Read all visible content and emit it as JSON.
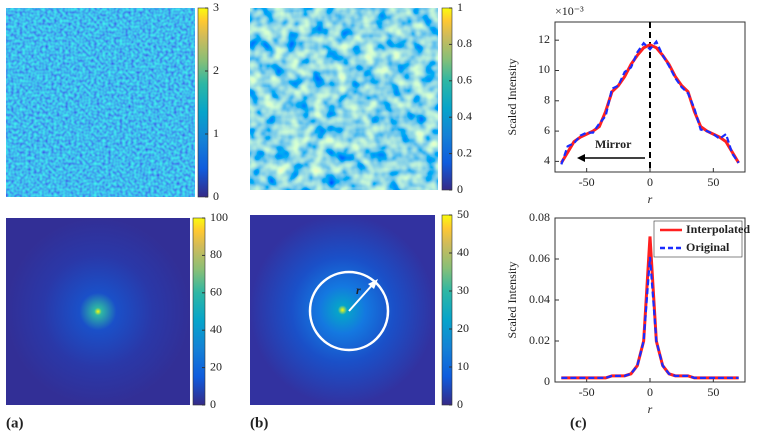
{
  "panel_labels": [
    "(a)",
    "(b)",
    "(c)"
  ],
  "chart_data": [
    {
      "type": "heatmap",
      "zlim": [
        0,
        3
      ],
      "zticks": [
        0,
        1,
        2,
        3
      ]
    },
    {
      "type": "heatmap",
      "zlim": [
        0,
        1
      ],
      "zticks": [
        0,
        0.2,
        0.4,
        0.6,
        0.8,
        1
      ]
    },
    {
      "type": "heatmap",
      "zlim": [
        0,
        100
      ],
      "zticks": [
        0,
        20,
        40,
        60,
        80,
        100
      ]
    },
    {
      "type": "heatmap",
      "zlim": [
        0,
        50
      ],
      "zticks": [
        0,
        10,
        20,
        30,
        40,
        50
      ],
      "annotation": "r"
    },
    {
      "type": "line",
      "xlabel": "r",
      "ylabel": "Scaled Intensity",
      "y_multiplier": "×10⁻³",
      "annotation": "Mirror",
      "vline": 0,
      "xlim": [
        -75,
        75
      ],
      "xticks": [
        -50,
        0,
        50
      ],
      "ylim": [
        3.3,
        13.2
      ],
      "yticks": [
        4,
        6,
        8,
        10,
        12
      ],
      "x": [
        -70,
        -65,
        -60,
        -55,
        -50,
        -45,
        -40,
        -35,
        -30,
        -25,
        -20,
        -15,
        -10,
        -5,
        0,
        5,
        10,
        15,
        20,
        25,
        30,
        35,
        40,
        45,
        50,
        55,
        60,
        65,
        70
      ],
      "series": [
        {
          "color": "#ff2020",
          "style": "solid",
          "values": [
            3.9,
            4.6,
            5.3,
            5.6,
            5.8,
            6.0,
            6.3,
            7.3,
            8.6,
            9.0,
            9.6,
            10.4,
            11.0,
            11.5,
            11.7,
            11.5,
            11.0,
            10.4,
            9.6,
            9.0,
            8.6,
            7.3,
            6.3,
            6.0,
            5.8,
            5.6,
            5.3,
            4.6,
            3.9
          ]
        },
        {
          "color": "#1a2cff",
          "style": "dashed",
          "values": [
            3.8,
            5.0,
            5.2,
            5.7,
            5.9,
            5.9,
            6.5,
            7.0,
            8.8,
            9.0,
            9.9,
            10.2,
            11.2,
            11.8,
            11.4,
            11.9,
            11.0,
            10.3,
            9.5,
            8.9,
            8.5,
            7.5,
            6.1,
            6.0,
            5.8,
            5.5,
            5.8,
            4.5,
            3.9
          ]
        }
      ]
    },
    {
      "type": "line",
      "xlabel": "r",
      "ylabel": "Scaled Intensity",
      "legend": "upper right",
      "xlim": [
        -75,
        75
      ],
      "xticks": [
        -50,
        0,
        50
      ],
      "ylim": [
        0,
        0.08
      ],
      "yticks": [
        0,
        0.02,
        0.04,
        0.06,
        0.08
      ],
      "x": [
        -70,
        -65,
        -60,
        -55,
        -50,
        -45,
        -40,
        -35,
        -30,
        -25,
        -20,
        -15,
        -10,
        -5,
        0,
        5,
        10,
        15,
        20,
        25,
        30,
        35,
        40,
        45,
        50,
        55,
        60,
        65,
        70
      ],
      "series": [
        {
          "name": "Interpolated",
          "color": "#ff2020",
          "style": "solid",
          "values": [
            0.002,
            0.002,
            0.002,
            0.002,
            0.002,
            0.002,
            0.002,
            0.002,
            0.003,
            0.003,
            0.003,
            0.004,
            0.008,
            0.02,
            0.071,
            0.02,
            0.008,
            0.004,
            0.003,
            0.003,
            0.003,
            0.002,
            0.002,
            0.002,
            0.002,
            0.002,
            0.002,
            0.002,
            0.002
          ]
        },
        {
          "name": "Original",
          "color": "#1a2cff",
          "style": "dashed",
          "values": [
            0.002,
            0.002,
            0.002,
            0.002,
            0.002,
            0.002,
            0.002,
            0.002,
            0.003,
            0.003,
            0.003,
            0.004,
            0.008,
            0.02,
            0.061,
            0.02,
            0.008,
            0.004,
            0.003,
            0.003,
            0.003,
            0.002,
            0.002,
            0.002,
            0.002,
            0.002,
            0.002,
            0.002,
            0.002
          ]
        }
      ]
    }
  ]
}
